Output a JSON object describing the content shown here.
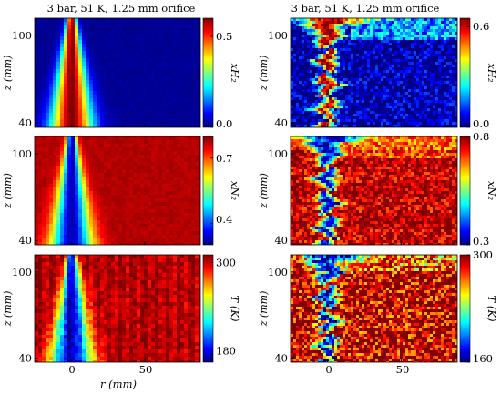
{
  "columns": [
    {
      "title": "3 bar, 51 K, 1.25 mm orifice"
    },
    {
      "title": "3 bar, 51 K, 1.25 mm orifice"
    }
  ],
  "x_axis": {
    "label": "r (mm)",
    "ticks": [
      "0",
      "50"
    ]
  },
  "colorscale": [
    "#00007f",
    "#0000ff",
    "#007fff",
    "#00ffff",
    "#7fff7f",
    "#ffff00",
    "#ff7f00",
    "#ff0000",
    "#7f0000"
  ],
  "chart_data": [
    {
      "type": "heatmap",
      "id": "xh2-mean",
      "ylabel": "z (mm)",
      "yticks": [
        "100",
        "40"
      ],
      "colorbar_label": "xH₂",
      "colorbar_ticks": [
        "0.5",
        "0.0"
      ],
      "crange": [
        0.0,
        0.6
      ],
      "field": "xh2",
      "noisy": false,
      "xlim": [
        -25,
        88
      ],
      "ylim": [
        37,
        112
      ]
    },
    {
      "type": "heatmap",
      "id": "xh2-inst",
      "ylabel": "z (mm)",
      "yticks": [
        "100",
        "40"
      ],
      "colorbar_label": "xH₂",
      "colorbar_ticks": [
        "0.6",
        "0.0"
      ],
      "crange": [
        0.0,
        0.65
      ],
      "field": "xh2",
      "noisy": true,
      "xlim": [
        -25,
        88
      ],
      "ylim": [
        37,
        112
      ]
    },
    {
      "type": "heatmap",
      "id": "xn2-mean",
      "ylabel": "z (mm)",
      "yticks": [
        "100",
        "40"
      ],
      "colorbar_label": "xN₂",
      "colorbar_ticks": [
        "0.7",
        "0.4"
      ],
      "crange": [
        0.3,
        0.8
      ],
      "field": "xn2",
      "noisy": false,
      "xlim": [
        -25,
        88
      ],
      "ylim": [
        37,
        112
      ]
    },
    {
      "type": "heatmap",
      "id": "xn2-inst",
      "ylabel": "z (mm)",
      "yticks": [
        "100",
        "40"
      ],
      "colorbar_label": "xN₂",
      "colorbar_ticks": [
        "0.8",
        "0.3"
      ],
      "crange": [
        0.3,
        0.8
      ],
      "field": "xn2",
      "noisy": true,
      "xlim": [
        -25,
        88
      ],
      "ylim": [
        37,
        112
      ]
    },
    {
      "type": "heatmap",
      "id": "t-mean",
      "ylabel": "z (mm)",
      "yticks": [
        "100",
        "40"
      ],
      "colorbar_label": "T (K)",
      "colorbar_ticks": [
        "300",
        "180"
      ],
      "crange": [
        170,
        310
      ],
      "field": "t",
      "noisy": false,
      "xlim": [
        -25,
        88
      ],
      "ylim": [
        37,
        112
      ]
    },
    {
      "type": "heatmap",
      "id": "t-inst",
      "ylabel": "z (mm)",
      "yticks": [
        "100",
        "40"
      ],
      "colorbar_label": "T (K)",
      "colorbar_ticks": [
        "300",
        "160"
      ],
      "crange": [
        160,
        300
      ],
      "field": "t",
      "noisy": true,
      "xlim": [
        -25,
        88
      ],
      "ylim": [
        37,
        112
      ]
    }
  ]
}
